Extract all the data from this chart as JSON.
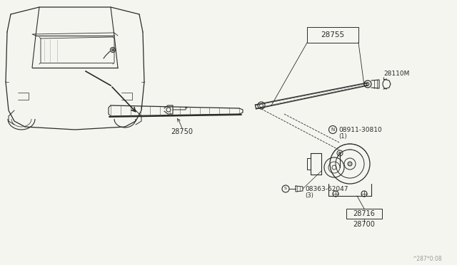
{
  "bg_color": "#f5f5f0",
  "line_color": "#2a2a2a",
  "watermark": "^287*0:08",
  "label_28755": "28755",
  "label_28110M": "28110M",
  "label_28750": "28750",
  "label_08911": "08911-30810",
  "label_08911_sub": "(1)",
  "label_08363": "08363-62047",
  "label_08363_sub": "(3)",
  "label_28716": "28716",
  "label_28700": "28700",
  "N_symbol": "N",
  "S_symbol": "S"
}
